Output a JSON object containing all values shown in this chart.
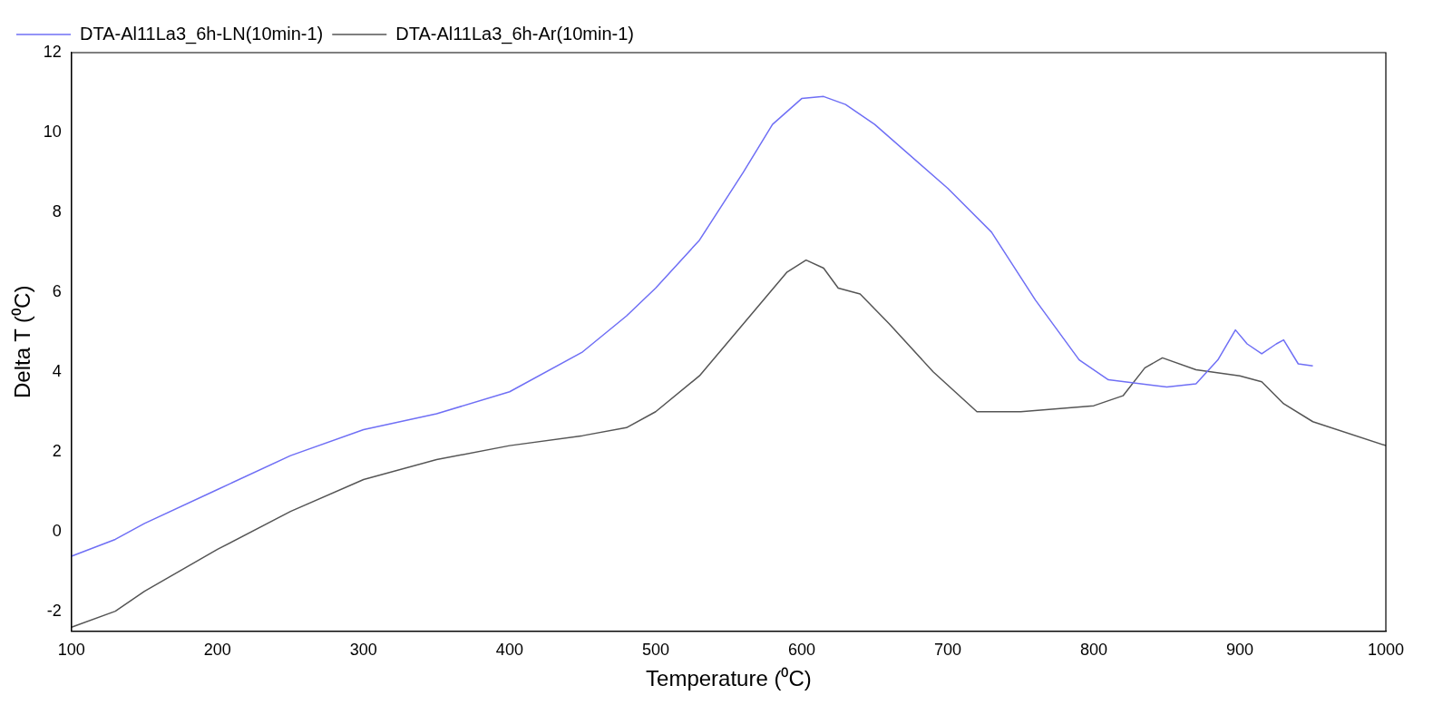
{
  "chart_data": {
    "type": "line",
    "xlabel": "Temperature (⁰C)",
    "ylabel": "Delta T (⁰C)",
    "xlim": [
      100,
      1000
    ],
    "ylim": [
      -2.5,
      12
    ],
    "xticks": [
      100,
      200,
      300,
      400,
      500,
      600,
      700,
      800,
      900,
      1000
    ],
    "yticks": [
      -2,
      0,
      2,
      4,
      6,
      8,
      10,
      12
    ],
    "grid": false,
    "legend": "top left",
    "marker": "none",
    "line_style": "solid",
    "series": [
      {
        "name": "DTA-Al11La3_6h-LN(10min-1)",
        "color": "#6f6ff5",
        "x": [
          100,
          130,
          150,
          200,
          250,
          300,
          350,
          400,
          450,
          480,
          500,
          530,
          560,
          580,
          600,
          615,
          630,
          650,
          700,
          730,
          760,
          790,
          810,
          850,
          870,
          885,
          897,
          905,
          915,
          925,
          930,
          940,
          950
        ],
        "values": [
          -0.62,
          -0.2,
          0.2,
          1.05,
          1.9,
          2.55,
          2.95,
          3.5,
          4.5,
          5.4,
          6.1,
          7.3,
          9.0,
          10.2,
          10.85,
          10.9,
          10.7,
          10.2,
          8.6,
          7.5,
          5.8,
          4.3,
          3.8,
          3.62,
          3.7,
          4.3,
          5.05,
          4.7,
          4.45,
          4.7,
          4.8,
          4.2,
          4.15
        ]
      },
      {
        "name": "DTA-Al11La3_6h-Ar(10min-1)",
        "color": "#555555",
        "x": [
          100,
          130,
          150,
          200,
          250,
          300,
          350,
          400,
          450,
          480,
          500,
          530,
          560,
          590,
          603,
          615,
          625,
          640,
          660,
          690,
          720,
          750,
          800,
          820,
          835,
          847,
          870,
          900,
          915,
          930,
          950,
          1000
        ],
        "values": [
          -2.4,
          -2.0,
          -1.5,
          -0.45,
          0.5,
          1.3,
          1.8,
          2.15,
          2.4,
          2.6,
          3.0,
          3.9,
          5.2,
          6.5,
          6.8,
          6.6,
          6.1,
          5.95,
          5.2,
          4.0,
          3.0,
          3.0,
          3.15,
          3.4,
          4.1,
          4.35,
          4.05,
          3.9,
          3.75,
          3.2,
          2.75,
          2.15
        ]
      }
    ]
  }
}
